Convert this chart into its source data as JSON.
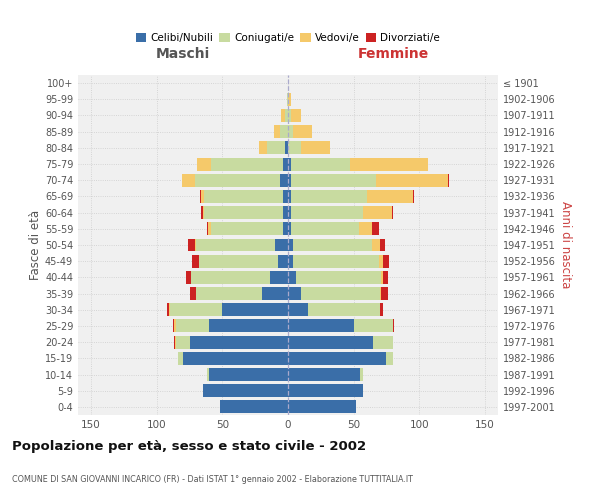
{
  "age_groups": [
    "0-4",
    "5-9",
    "10-14",
    "15-19",
    "20-24",
    "25-29",
    "30-34",
    "35-39",
    "40-44",
    "45-49",
    "50-54",
    "55-59",
    "60-64",
    "65-69",
    "70-74",
    "75-79",
    "80-84",
    "85-89",
    "90-94",
    "95-99",
    "100+"
  ],
  "birth_years": [
    "1997-2001",
    "1992-1996",
    "1987-1991",
    "1982-1986",
    "1977-1981",
    "1972-1976",
    "1967-1971",
    "1962-1966",
    "1957-1961",
    "1952-1956",
    "1947-1951",
    "1942-1946",
    "1937-1941",
    "1932-1936",
    "1927-1931",
    "1922-1926",
    "1917-1921",
    "1912-1916",
    "1907-1911",
    "1902-1906",
    "≤ 1901"
  ],
  "male": {
    "celibi": [
      52,
      65,
      60,
      80,
      75,
      60,
      50,
      20,
      14,
      8,
      10,
      4,
      4,
      4,
      6,
      4,
      2,
      0,
      0,
      0,
      0
    ],
    "coniugati": [
      0,
      0,
      2,
      4,
      10,
      25,
      40,
      50,
      60,
      60,
      60,
      55,
      60,
      60,
      65,
      55,
      14,
      6,
      2,
      1,
      0
    ],
    "vedovi": [
      0,
      0,
      0,
      0,
      1,
      2,
      1,
      0,
      0,
      0,
      1,
      2,
      1,
      2,
      10,
      10,
      6,
      5,
      3,
      0,
      0
    ],
    "divorziati": [
      0,
      0,
      0,
      0,
      1,
      1,
      1,
      5,
      4,
      5,
      5,
      1,
      1,
      1,
      0,
      0,
      0,
      0,
      0,
      0,
      0
    ]
  },
  "female": {
    "nubili": [
      52,
      57,
      55,
      75,
      65,
      50,
      15,
      10,
      6,
      4,
      4,
      2,
      2,
      2,
      2,
      2,
      0,
      0,
      0,
      0,
      0
    ],
    "coniugate": [
      0,
      0,
      2,
      5,
      15,
      30,
      55,
      60,
      65,
      65,
      60,
      52,
      55,
      58,
      65,
      45,
      10,
      4,
      2,
      0,
      0
    ],
    "vedove": [
      0,
      0,
      0,
      0,
      0,
      0,
      0,
      1,
      1,
      3,
      6,
      10,
      22,
      35,
      55,
      60,
      22,
      14,
      8,
      2,
      0
    ],
    "divorziate": [
      0,
      0,
      0,
      0,
      0,
      1,
      2,
      5,
      4,
      5,
      4,
      5,
      1,
      1,
      1,
      0,
      0,
      0,
      0,
      0,
      0
    ]
  },
  "colors": {
    "celibi": "#3a6ea8",
    "coniugati": "#c8dba0",
    "vedovi": "#f5c96a",
    "divorziati": "#cc2222"
  },
  "xlim": 160,
  "title": "Popolazione per età, sesso e stato civile - 2002",
  "subtitle": "COMUNE DI SAN GIOVANNI INCARICO (FR) - Dati ISTAT 1° gennaio 2002 - Elaborazione TUTTITALIA.IT",
  "ylabel_left": "Fasce di età",
  "ylabel_right": "Anni di nascita",
  "xlabel_left": "Maschi",
  "xlabel_right": "Femmine",
  "bg_color": "#ffffff",
  "plot_bg": "#f0f0f0",
  "grid_color": "#cccccc"
}
